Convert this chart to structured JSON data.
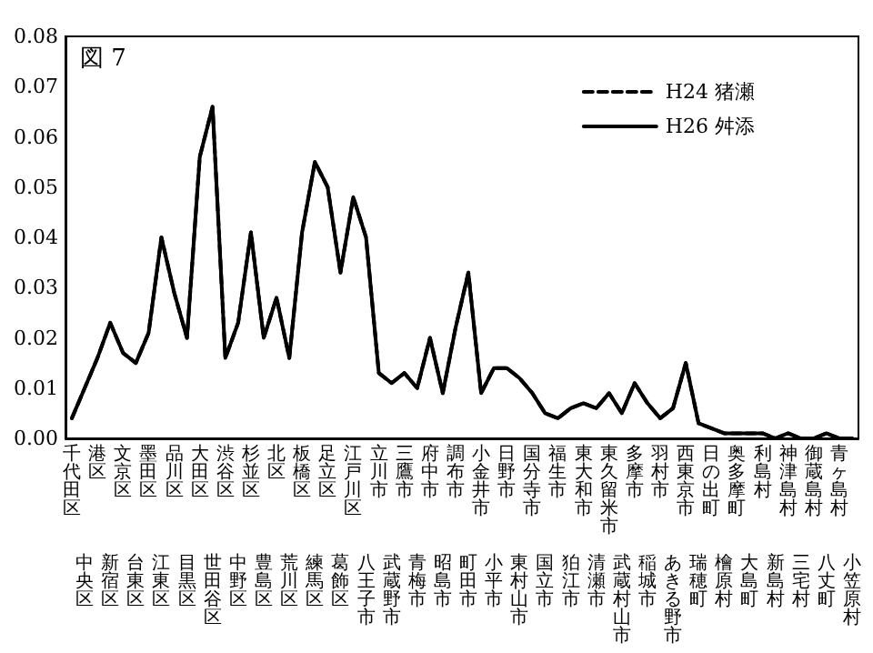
{
  "chart_data": {
    "type": "line",
    "annotations": [
      "図 7"
    ],
    "categories": [
      "千代田区",
      "中央区",
      "港区",
      "新宿区",
      "文京区",
      "台東区",
      "墨田区",
      "江東区",
      "品川区",
      "目黒区",
      "大田区",
      "世田谷区",
      "渋谷区",
      "中野区",
      "杉並区",
      "豊島区",
      "北区",
      "荒川区",
      "板橋区",
      "練馬区",
      "足立区",
      "葛飾区",
      "江戸川区",
      "八王子市",
      "立川市",
      "武蔵野市",
      "三鷹市",
      "青梅市",
      "府中市",
      "昭島市",
      "調布市",
      "町田市",
      "小金井市",
      "小平市",
      "日野市",
      "東村山市",
      "国分寺市",
      "国立市",
      "福生市",
      "狛江市",
      "東大和市",
      "清瀬市",
      "東久留米市",
      "武蔵村山市",
      "多摩市",
      "稲城市",
      "羽村市",
      "あきる野市",
      "西東京市",
      "瑞穂町",
      "日の出町",
      "檜原村",
      "奥多摩町",
      "大島町",
      "利島村",
      "新島村",
      "神津島村",
      "三宅村",
      "御蔵島村",
      "八丈町",
      "青ヶ島村",
      "小笠原村"
    ],
    "series": [
      {
        "name": "H24 猪瀬",
        "color": "#000000",
        "line_style": "dashed",
        "values": [
          0.004,
          0.01,
          0.016,
          0.023,
          0.017,
          0.015,
          0.021,
          0.04,
          0.029,
          0.02,
          0.056,
          0.066,
          0.016,
          0.023,
          0.041,
          0.02,
          0.028,
          0.016,
          0.041,
          0.055,
          0.05,
          0.033,
          0.048,
          0.04,
          0.013,
          0.011,
          0.013,
          0.01,
          0.02,
          0.009,
          0.022,
          0.033,
          0.009,
          0.014,
          0.014,
          0.012,
          0.009,
          0.005,
          0.004,
          0.006,
          0.007,
          0.006,
          0.009,
          0.005,
          0.011,
          0.007,
          0.004,
          0.006,
          0.015,
          0.003,
          0.002,
          0.001,
          0.001,
          0.001,
          0.001,
          0.0,
          0.001,
          0.0,
          0.0,
          0.001,
          0.0,
          0.0
        ]
      },
      {
        "name": "H26 舛添",
        "color": "#000000",
        "line_style": "solid",
        "values": [
          0.004,
          0.01,
          0.016,
          0.023,
          0.017,
          0.015,
          0.021,
          0.04,
          0.029,
          0.02,
          0.056,
          0.066,
          0.016,
          0.023,
          0.041,
          0.02,
          0.028,
          0.016,
          0.041,
          0.055,
          0.05,
          0.033,
          0.048,
          0.04,
          0.013,
          0.011,
          0.013,
          0.01,
          0.02,
          0.009,
          0.022,
          0.033,
          0.009,
          0.014,
          0.014,
          0.012,
          0.009,
          0.005,
          0.004,
          0.006,
          0.007,
          0.006,
          0.009,
          0.005,
          0.011,
          0.007,
          0.004,
          0.006,
          0.015,
          0.003,
          0.002,
          0.001,
          0.001,
          0.001,
          0.001,
          0.0,
          0.001,
          0.0,
          0.0,
          0.001,
          0.0,
          0.0
        ]
      }
    ],
    "ylim": [
      0,
      0.08
    ],
    "yticks": [
      {
        "value": 0,
        "label": "0.00"
      },
      {
        "value": 0.01,
        "label": "0.01"
      },
      {
        "value": 0.02,
        "label": "0.02"
      },
      {
        "value": 0.03,
        "label": "0.03"
      },
      {
        "value": 0.04,
        "label": "0.04"
      },
      {
        "value": 0.05,
        "label": "0.05"
      },
      {
        "value": 0.06,
        "label": "0.06"
      },
      {
        "value": 0.07,
        "label": "0.07"
      },
      {
        "value": 0.08,
        "label": "0.08"
      }
    ],
    "legend": "top right",
    "marker": "none"
  }
}
